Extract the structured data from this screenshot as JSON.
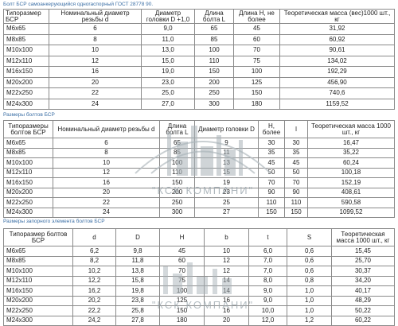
{
  "tables": [
    {
      "caption": "Болт БСР самоанкерующийся одноraспорный ГОСТ 28778 90.",
      "headers": [
        "Типоразмер БСР",
        "Номинальный диаметр резьбы d",
        "Диаметр головки D +1,0",
        "Длина болта L",
        "Длина H, не более",
        "Теоретическая масса (вес)1000 шт., кг"
      ],
      "rows": [
        [
          "M6x65",
          "6",
          "9,0",
          "65",
          "45",
          "31,92"
        ],
        [
          "M8x85",
          "8",
          "11,0",
          "85",
          "60",
          "60,92"
        ],
        [
          "M10x100",
          "10",
          "13,0",
          "100",
          "70",
          "90,61"
        ],
        [
          "M12x110",
          "12",
          "15,0",
          "110",
          "75",
          "134,02"
        ],
        [
          "M16x150",
          "16",
          "19,0",
          "150",
          "100",
          "192,29"
        ],
        [
          "M20x200",
          "20",
          "23,0",
          "200",
          "125",
          "456,90"
        ],
        [
          "M22x250",
          "22",
          "25,0",
          "250",
          "150",
          "740,6"
        ],
        [
          "M24x300",
          "24",
          "27,0",
          "300",
          "180",
          "1159,52"
        ]
      ]
    },
    {
      "caption": "Размеры болтов БСР",
      "headers": [
        "Типоразмеры болтов БСР",
        "Номинальный диаметр резьбы d",
        "Длина болта L",
        "Диаметр головки D",
        "H, более",
        "l",
        "Теоретическая масса 1000 шт., кг"
      ],
      "rows": [
        [
          "M6x65",
          "6",
          "65",
          "9",
          "30",
          "30",
          "16,47"
        ],
        [
          "M8x85",
          "8",
          "85",
          "11",
          "35",
          "35",
          "35,22"
        ],
        [
          "M10x100",
          "10",
          "100",
          "13",
          "45",
          "45",
          "60,24"
        ],
        [
          "M12x110",
          "12",
          "110",
          "15",
          "50",
          "50",
          "100,18"
        ],
        [
          "M16x150",
          "16",
          "150",
          "19",
          "70",
          "70",
          "152,19"
        ],
        [
          "M20x200",
          "20",
          "200",
          "23",
          "90",
          "90",
          "408,61"
        ],
        [
          "M22x250",
          "22",
          "250",
          "25",
          "110",
          "110",
          "590,58"
        ],
        [
          "M24x300",
          "24",
          "300",
          "27",
          "150",
          "150",
          "1099,52"
        ]
      ]
    },
    {
      "caption": "Размеры запорного элемента болтов БСР",
      "headers": [
        "Типоразмер болтов БСР",
        "d",
        "D",
        "H",
        "b",
        "t",
        "S",
        "Теоретическая масса 1000 шт., кг"
      ],
      "rows": [
        [
          "M6x65",
          "6,2",
          "9,8",
          "45",
          "10",
          "6,0",
          "0,6",
          "15,45"
        ],
        [
          "M8x85",
          "8,2",
          "11,8",
          "60",
          "12",
          "7,0",
          "0,6",
          "25,70"
        ],
        [
          "M10x100",
          "10,2",
          "13,8",
          "70",
          "12",
          "7,0",
          "0,6",
          "30,37"
        ],
        [
          "M12x110",
          "12,2",
          "15,8",
          "75",
          "14",
          "8,0",
          "0,8",
          "34,20"
        ],
        [
          "M16x150",
          "16,2",
          "19,8",
          "100",
          "14",
          "9,0",
          "1,0",
          "40,17"
        ],
        [
          "M20x200",
          "20,2",
          "23,8",
          "125",
          "16",
          "9,0",
          "1,0",
          "48,29"
        ],
        [
          "M22x250",
          "22,2",
          "25,8",
          "150",
          "16",
          "10,0",
          "1,0",
          "50,22"
        ],
        [
          "M24x300",
          "24,2",
          "27,8",
          "180",
          "20",
          "12,0",
          "1,2",
          "60,22"
        ]
      ]
    }
  ],
  "watermark": {
    "text": "\"КСК КОМПАНИ\"",
    "color": "#9aa6ad"
  }
}
